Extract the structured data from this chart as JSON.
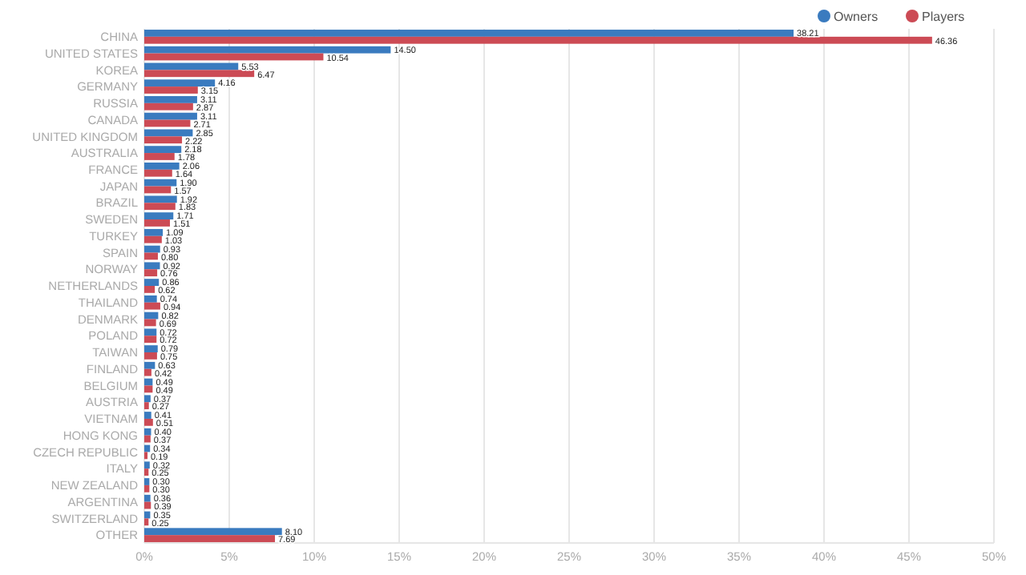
{
  "chart_data": {
    "type": "bar",
    "orientation": "horizontal",
    "categories": [
      "CHINA",
      "UNITED STATES",
      "KOREA",
      "GERMANY",
      "RUSSIA",
      "CANADA",
      "UNITED KINGDOM",
      "AUSTRALIA",
      "FRANCE",
      "JAPAN",
      "BRAZIL",
      "SWEDEN",
      "TURKEY",
      "SPAIN",
      "NORWAY",
      "NETHERLANDS",
      "THAILAND",
      "DENMARK",
      "POLAND",
      "TAIWAN",
      "FINLAND",
      "BELGIUM",
      "AUSTRIA",
      "VIETNAM",
      "HONG KONG",
      "CZECH REPUBLIC",
      "ITALY",
      "NEW ZEALAND",
      "ARGENTINA",
      "SWITZERLAND",
      "OTHER"
    ],
    "series": [
      {
        "name": "Owners",
        "color": "#3a7bbf",
        "values": [
          38.21,
          14.5,
          5.53,
          4.16,
          3.11,
          3.11,
          2.85,
          2.18,
          2.06,
          1.9,
          1.92,
          1.71,
          1.09,
          0.93,
          0.92,
          0.86,
          0.74,
          0.82,
          0.72,
          0.79,
          0.63,
          0.49,
          0.37,
          0.41,
          0.4,
          0.34,
          0.32,
          0.3,
          0.36,
          0.35,
          8.1
        ],
        "value_labels": [
          "38.21",
          "14.50",
          "5.53",
          "4.16",
          "3.11",
          "3.11",
          "2.85",
          "2.18",
          "2.06",
          "1.90",
          "1.92",
          "1.71",
          "1.09",
          "0.93",
          "0.92",
          "0.86",
          "0.74",
          "0.82",
          "0.72",
          "0.79",
          "0.63",
          "0.49",
          "0.37",
          "0.41",
          "0.40",
          "0.34",
          "0.32",
          "0.30",
          "0.36",
          "0.35",
          "8.10"
        ]
      },
      {
        "name": "Players",
        "color": "#cc4b55",
        "values": [
          46.36,
          10.54,
          6.47,
          3.15,
          2.87,
          2.71,
          2.22,
          1.78,
          1.64,
          1.57,
          1.83,
          1.51,
          1.03,
          0.8,
          0.76,
          0.62,
          0.94,
          0.69,
          0.72,
          0.75,
          0.42,
          0.49,
          0.27,
          0.51,
          0.37,
          0.19,
          0.25,
          0.3,
          0.39,
          0.25,
          7.69
        ],
        "value_labels": [
          "46.36",
          "10.54",
          "6.47",
          "3.15",
          "2.87",
          "2.71",
          "2.22",
          "1.78",
          "1.64",
          "1.57",
          "1.83",
          "1.51",
          "1.03",
          "0.80",
          "0.76",
          "0.62",
          "0.94",
          "0.69",
          "0.72",
          "0.75",
          "0.42",
          "0.49",
          "0.27",
          "0.51",
          "0.37",
          "0.19",
          "0.25",
          "0.30",
          "0.39",
          "0.25",
          "7.69"
        ]
      }
    ],
    "xlim": [
      0,
      50
    ],
    "xticks": [
      {
        "value": 0,
        "label": "0%"
      },
      {
        "value": 5,
        "label": "5%"
      },
      {
        "value": 10,
        "label": "10%"
      },
      {
        "value": 15,
        "label": "15%"
      },
      {
        "value": 20,
        "label": "20%"
      },
      {
        "value": 25,
        "label": "25%"
      },
      {
        "value": 30,
        "label": "30%"
      },
      {
        "value": 35,
        "label": "35%"
      },
      {
        "value": 40,
        "label": "40%"
      },
      {
        "value": 45,
        "label": "45%"
      },
      {
        "value": 50,
        "label": "50%"
      }
    ],
    "grid": "x",
    "legend": "top right"
  }
}
